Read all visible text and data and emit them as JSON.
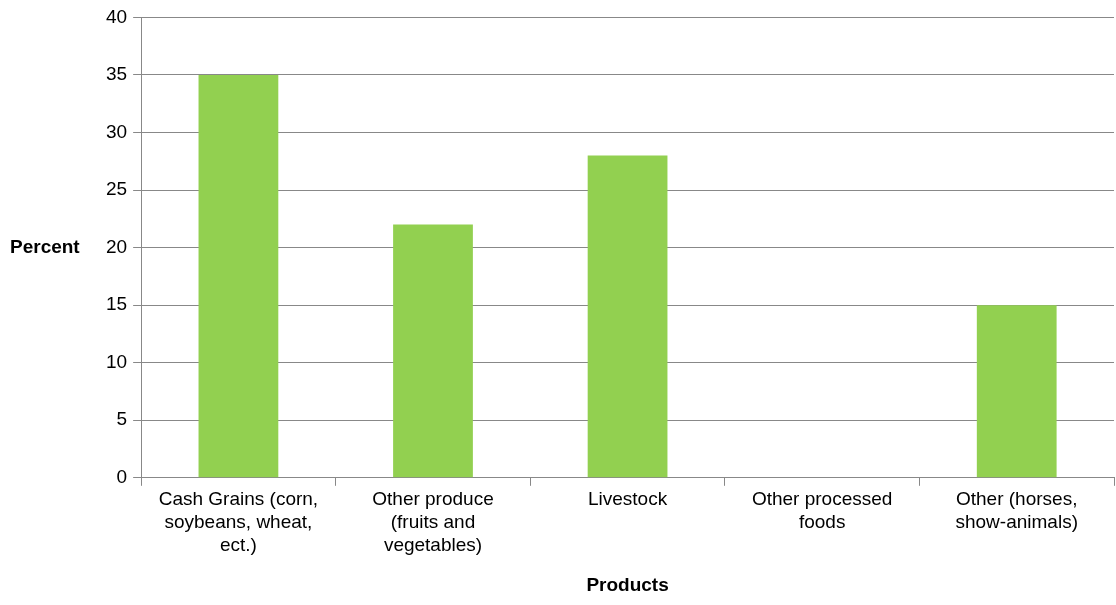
{
  "chart_data": {
    "type": "bar",
    "xlabel": "Products",
    "ylabel": "Percent",
    "categories": [
      "Cash Grains (corn, soybeans, wheat, ect.)",
      "Other produce (fruits and vegetables)",
      "Livestock",
      "Other processed foods",
      "Other (horses, show-animals)"
    ],
    "values": [
      35,
      22,
      28,
      0,
      15
    ],
    "color": "#92d050",
    "ylim": [
      0,
      40
    ],
    "yticks": [
      0,
      5,
      10,
      15,
      20,
      25,
      30,
      35,
      40
    ],
    "grid": "y",
    "legend": false
  }
}
